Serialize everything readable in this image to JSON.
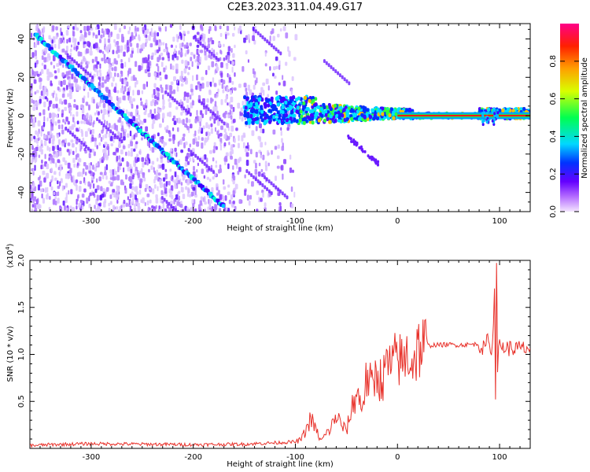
{
  "title": "C2E3.2023.311.04.49.G17",
  "chart_data": [
    {
      "type": "heatmap",
      "xlabel": "Height of straight line (km)",
      "ylabel": "Frequency (Hz)",
      "xlim": [
        -360,
        130
      ],
      "ylim": [
        -50,
        48
      ],
      "x_ticks": [
        -300,
        -200,
        -100,
        0,
        100
      ],
      "x_tick_labels": [
        "-300",
        "-200",
        "-100",
        "0",
        "100"
      ],
      "y_ticks": [
        -40,
        -20,
        0,
        20,
        40
      ],
      "y_tick_labels": [
        "-40",
        "-20",
        "0",
        "20",
        "40"
      ],
      "colorbar": {
        "label": "Normalized spectral amplitude",
        "ticks": [
          0.0,
          0.2,
          0.4,
          0.6,
          0.8
        ],
        "tick_labels": [
          "0.0",
          "0.2",
          "0.4",
          "0.6",
          "0.8"
        ],
        "range": [
          0,
          1
        ]
      },
      "features": [
        {
          "name": "diagonal-trace",
          "x": [
            -355,
            -170
          ],
          "y": [
            42,
            -48
          ]
        },
        {
          "name": "noise-region",
          "x": [
            -360,
            -100
          ],
          "y": [
            -50,
            48
          ]
        },
        {
          "name": "signal-band",
          "x": [
            -150,
            130
          ],
          "y": [
            -5,
            8
          ]
        },
        {
          "name": "carrier-line",
          "x": [
            0,
            130
          ],
          "y": [
            0,
            0
          ]
        }
      ],
      "grid": false
    },
    {
      "type": "line",
      "xlabel": "Height of straight line (km)",
      "ylabel": "SNR (10 * v/v)",
      "y_multiplier": "(x10",
      "y_multiplier_exp": "4",
      "y_multiplier_close": ")",
      "xlim": [
        -360,
        130
      ],
      "ylim": [
        0,
        20000
      ],
      "x_ticks": [
        -300,
        -200,
        -100,
        0,
        100
      ],
      "x_tick_labels": [
        "-300",
        "-200",
        "-100",
        "0",
        "100"
      ],
      "y_ticks": [
        5000,
        10000,
        15000,
        20000
      ],
      "y_tick_labels": [
        "0.5",
        "1.0",
        "1.5",
        "2.0"
      ],
      "color": "#e8312a",
      "series": [
        {
          "x": [
            -360,
            -340,
            -300,
            -250,
            -200,
            -150,
            -120,
            -100,
            -95,
            -90,
            -85,
            -80,
            -75,
            -70,
            -65,
            -60,
            -55,
            -50,
            -45,
            -40,
            -35,
            -30,
            -25,
            -20,
            -15,
            -10,
            -5,
            0,
            5,
            10,
            15,
            20,
            25,
            30,
            35,
            40,
            50,
            60,
            70,
            80,
            85,
            90,
            92,
            94,
            95,
            96,
            97,
            98,
            100,
            105,
            110,
            120,
            130
          ],
          "y": [
            300,
            400,
            500,
            450,
            400,
            450,
            600,
            700,
            900,
            1800,
            3200,
            2000,
            800,
            1500,
            2200,
            3500,
            2500,
            1800,
            4200,
            6000,
            4500,
            7500,
            6500,
            8200,
            7000,
            9000,
            8500,
            10000,
            8800,
            10200,
            9200,
            10700,
            10800,
            10900,
            11000,
            11000,
            11050,
            11000,
            11050,
            11100,
            10500,
            12000,
            9500,
            13000,
            17500,
            6000,
            20000,
            9000,
            11000,
            10700,
            10650,
            10600,
            10650
          ]
        }
      ],
      "grid": false
    }
  ]
}
